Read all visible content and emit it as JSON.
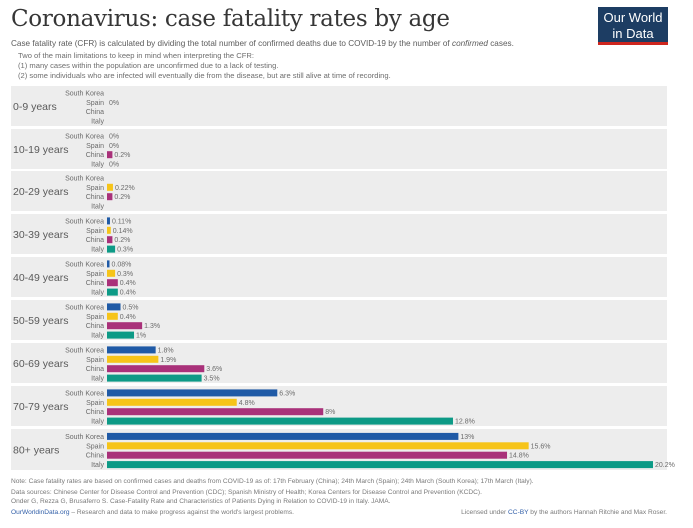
{
  "header": {
    "title": "Coronavirus: case fatality rates by age",
    "subtitle_pre": "Case fatality rate (CFR) is calculated by dividing the total number of confirmed deaths due to COVID-19 by the number of ",
    "subtitle_em": "confirmed",
    "subtitle_post": " cases.",
    "note_lines": [
      "Two of the main limitations to keep in mind when interpreting the CFR:",
      "(1) many cases within the population are unconfirmed due to a lack of testing.",
      "(2) some individuals who are infected will eventually die from the disease, but are still alive at time of recording."
    ]
  },
  "logo": {
    "line1": "Our World",
    "line2": "in Data"
  },
  "chart_data": {
    "type": "bar",
    "orientation": "horizontal",
    "series_colors": {
      "South Korea": "#1f5aa6",
      "Spain": "#f6c419",
      "China": "#a9317a",
      "Italy": "#0d9a86"
    },
    "xlim": [
      0,
      20.2
    ],
    "groups": [
      {
        "label": "0-9 years",
        "bars": [
          {
            "country": "South Korea",
            "value": null,
            "label": ""
          },
          {
            "country": "Spain",
            "value": 0,
            "label": "0%"
          },
          {
            "country": "China",
            "value": null,
            "label": ""
          },
          {
            "country": "Italy",
            "value": null,
            "label": ""
          }
        ]
      },
      {
        "label": "10-19 years",
        "bars": [
          {
            "country": "South Korea",
            "value": 0,
            "label": "0%"
          },
          {
            "country": "Spain",
            "value": 0,
            "label": "0%"
          },
          {
            "country": "China",
            "value": 0.2,
            "label": "0.2%"
          },
          {
            "country": "Italy",
            "value": 0,
            "label": "0%"
          }
        ]
      },
      {
        "label": "20-29 years",
        "bars": [
          {
            "country": "South Korea",
            "value": null,
            "label": ""
          },
          {
            "country": "Spain",
            "value": 0.22,
            "label": "0.22%"
          },
          {
            "country": "China",
            "value": 0.2,
            "label": "0.2%"
          },
          {
            "country": "Italy",
            "value": null,
            "label": ""
          }
        ]
      },
      {
        "label": "30-39 years",
        "bars": [
          {
            "country": "South Korea",
            "value": 0.11,
            "label": "0.11%"
          },
          {
            "country": "Spain",
            "value": 0.14,
            "label": "0.14%"
          },
          {
            "country": "China",
            "value": 0.2,
            "label": "0.2%"
          },
          {
            "country": "Italy",
            "value": 0.3,
            "label": "0.3%"
          }
        ]
      },
      {
        "label": "40-49 years",
        "bars": [
          {
            "country": "South Korea",
            "value": 0.08,
            "label": "0.08%"
          },
          {
            "country": "Spain",
            "value": 0.3,
            "label": "0.3%"
          },
          {
            "country": "China",
            "value": 0.4,
            "label": "0.4%"
          },
          {
            "country": "Italy",
            "value": 0.4,
            "label": "0.4%"
          }
        ]
      },
      {
        "label": "50-59 years",
        "bars": [
          {
            "country": "South Korea",
            "value": 0.5,
            "label": "0.5%"
          },
          {
            "country": "Spain",
            "value": 0.4,
            "label": "0.4%"
          },
          {
            "country": "China",
            "value": 1.3,
            "label": "1.3%"
          },
          {
            "country": "Italy",
            "value": 1,
            "label": "1%"
          }
        ]
      },
      {
        "label": "60-69 years",
        "bars": [
          {
            "country": "South Korea",
            "value": 1.8,
            "label": "1.8%"
          },
          {
            "country": "Spain",
            "value": 1.9,
            "label": "1.9%"
          },
          {
            "country": "China",
            "value": 3.6,
            "label": "3.6%"
          },
          {
            "country": "Italy",
            "value": 3.5,
            "label": "3.5%"
          }
        ]
      },
      {
        "label": "70-79 years",
        "bars": [
          {
            "country": "South Korea",
            "value": 6.3,
            "label": "6.3%"
          },
          {
            "country": "Spain",
            "value": 4.8,
            "label": "4.8%"
          },
          {
            "country": "China",
            "value": 8,
            "label": "8%"
          },
          {
            "country": "Italy",
            "value": 12.8,
            "label": "12.8%"
          }
        ]
      },
      {
        "label": "80+ years",
        "bars": [
          {
            "country": "South Korea",
            "value": 13,
            "label": "13%"
          },
          {
            "country": "Spain",
            "value": 15.6,
            "label": "15.6%"
          },
          {
            "country": "China",
            "value": 14.8,
            "label": "14.8%"
          },
          {
            "country": "Italy",
            "value": 20.2,
            "label": "20.2%"
          }
        ]
      }
    ]
  },
  "footer": {
    "note": "Note: Case fatality rates are based on confirmed cases and deaths from COVID-19 as of: 17th February (China); 24th March (Spain); 24th March (South Korea); 17th March (Italy).",
    "sources_1": "Data sources: Chinese Center for Disease Control and Prevention (CDC); Spanish Ministry of Health; Korea Centers for Disease Control and Prevention (KCDC).",
    "sources_2": "Onder G, Rezza G, Brusaferro S. Case-Fatality Rate and Characteristics of Patients Dying in Relation to COVID-19 in Italy. JAMA.",
    "site_link": "OurWorldinData.org",
    "site_text": " – Research and data to make progress against the world's largest problems.",
    "license_pre": "Licensed under ",
    "license_link": "CC-BY",
    "license_post": " by the authors Hannah Ritchie and Max Roser."
  }
}
